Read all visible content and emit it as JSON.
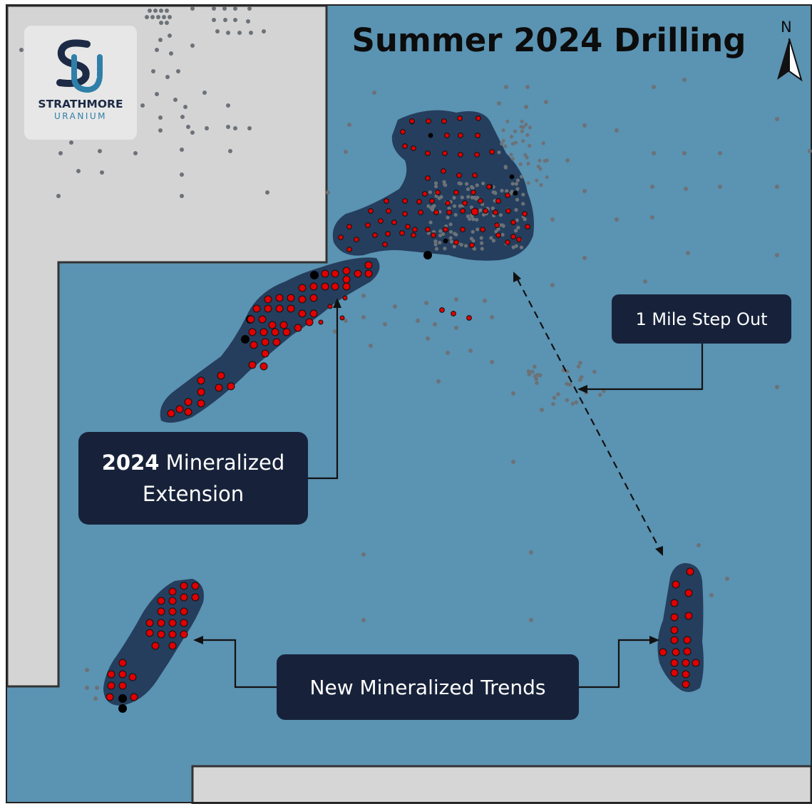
{
  "title": "Summer 2024 Drilling",
  "logo": {
    "text_main": "STRATHMORE",
    "text_sub": "URANIUM",
    "monogram": "SU"
  },
  "north_arrow": {
    "label": "N",
    "icon": "north-arrow-icon"
  },
  "callouts": {
    "extension": {
      "line1_bold": "2024",
      "line1_rest": " Mineralized",
      "line2": "Extension"
    },
    "step_out": {
      "text": "1 Mile Step Out"
    },
    "trends": {
      "text": "New Mineralized Trends"
    }
  },
  "colors": {
    "project_area": "#5b93b2",
    "outside_area": "#d2d2d2",
    "mineralized_zone": "#1f3553",
    "mineralized_hole": "#e00000",
    "barren_hole": "#000000",
    "historic_hole": "#6c7278",
    "callout_bg": "#17223a",
    "brand_blue": "#2f7fa8",
    "brand_navy": "#1c2a45"
  },
  "legend_semantics": {
    "red_dot": "mineralized drill hole",
    "black_dot": "non-mineralized drill hole",
    "grey_dot": "historic drill hole",
    "dark_polygon": "mineralized trend"
  }
}
